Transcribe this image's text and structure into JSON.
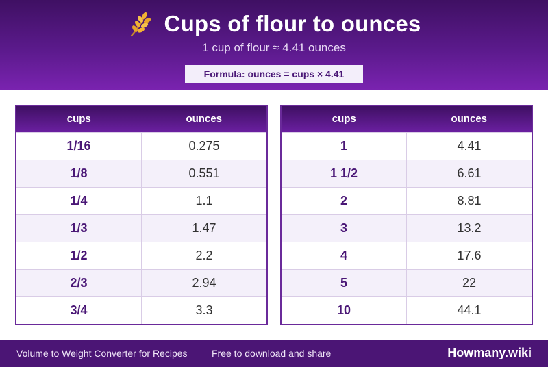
{
  "header": {
    "icon": "wheat-icon",
    "title": "Cups of flour to ounces",
    "subtitle": "1 cup of flour ≈ 4.41 ounces",
    "formula": "Formula: ounces = cups × 4.41"
  },
  "colors": {
    "header_top": "#3f1063",
    "header_bottom": "#7a23b0",
    "accent": "#4a1776",
    "row_alt": "#f4f0fa",
    "footer": "#4b1575"
  },
  "left_table": {
    "headers": [
      "cups",
      "ounces"
    ],
    "rows": [
      [
        "1/16",
        "0.275"
      ],
      [
        "1/8",
        "0.551"
      ],
      [
        "1/4",
        "1.1"
      ],
      [
        "1/3",
        "1.47"
      ],
      [
        "1/2",
        "2.2"
      ],
      [
        "2/3",
        "2.94"
      ],
      [
        "3/4",
        "3.3"
      ]
    ]
  },
  "right_table": {
    "headers": [
      "cups",
      "ounces"
    ],
    "rows": [
      [
        "1",
        "4.41"
      ],
      [
        "1 1/2",
        "6.61"
      ],
      [
        "2",
        "8.81"
      ],
      [
        "3",
        "13.2"
      ],
      [
        "4",
        "17.6"
      ],
      [
        "5",
        "22"
      ],
      [
        "10",
        "44.1"
      ]
    ]
  },
  "footer": {
    "left": "Volume to Weight Converter for Recipes",
    "middle": "Free to download and share",
    "brand": "Howmany.wiki"
  }
}
